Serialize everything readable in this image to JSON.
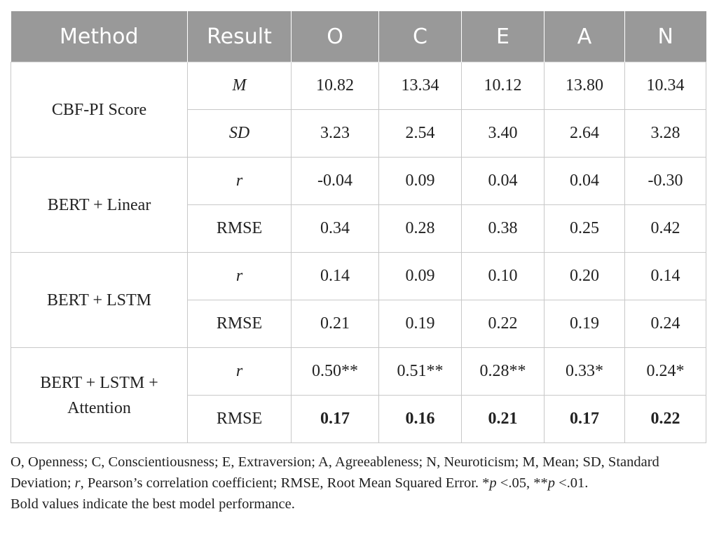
{
  "header": [
    "Method",
    "Result",
    "O",
    "C",
    "E",
    "A",
    "N"
  ],
  "groups": [
    {
      "method": "CBF-PI Score",
      "rows": [
        {
          "result": "M",
          "result_italic": true,
          "values": [
            "10.82",
            "13.34",
            "10.12",
            "13.80",
            "10.34"
          ],
          "bold": false
        },
        {
          "result": "SD",
          "result_italic": true,
          "values": [
            "3.23",
            "2.54",
            "3.40",
            "2.64",
            "3.28"
          ],
          "bold": false
        }
      ]
    },
    {
      "method": "BERT + Linear",
      "rows": [
        {
          "result": "r",
          "result_italic": true,
          "values": [
            "-0.04",
            "0.09",
            "0.04",
            "0.04",
            "-0.30"
          ],
          "bold": false
        },
        {
          "result": "RMSE",
          "result_italic": false,
          "values": [
            "0.34",
            "0.28",
            "0.38",
            "0.25",
            "0.42"
          ],
          "bold": false
        }
      ]
    },
    {
      "method": "BERT + LSTM",
      "rows": [
        {
          "result": "r",
          "result_italic": true,
          "values": [
            "0.14",
            "0.09",
            "0.10",
            "0.20",
            "0.14"
          ],
          "bold": false
        },
        {
          "result": "RMSE",
          "result_italic": false,
          "values": [
            "0.21",
            "0.19",
            "0.22",
            "0.19",
            "0.24"
          ],
          "bold": false
        }
      ]
    },
    {
      "method": "BERT + LSTM + Attention",
      "method_lines": [
        "BERT + LSTM +",
        "Attention"
      ],
      "rows": [
        {
          "result": "r",
          "result_italic": true,
          "values": [
            "0.50**",
            "0.51**",
            "0.28**",
            "0.33*",
            "0.24*"
          ],
          "bold": false
        },
        {
          "result": "RMSE",
          "result_italic": false,
          "values": [
            "0.17",
            "0.16",
            "0.21",
            "0.17",
            "0.22"
          ],
          "bold": true
        }
      ]
    }
  ],
  "notes": {
    "line1_part1": "O, Openness; C, Conscientiousness; E, Extraversion; A, Agreeableness; N, Neuroticism; M, Mean; SD, Standard Deviation; ",
    "line1_r": "r",
    "line1_part2": ", Pearson’s correlation coefficient; RMSE, Root Mean Squared Error. *",
    "p1": "p",
    "line1_part3": " <.05, **",
    "p2": "p",
    "line1_part4": " <.01.",
    "line2": "Bold values indicate the best model performance."
  }
}
